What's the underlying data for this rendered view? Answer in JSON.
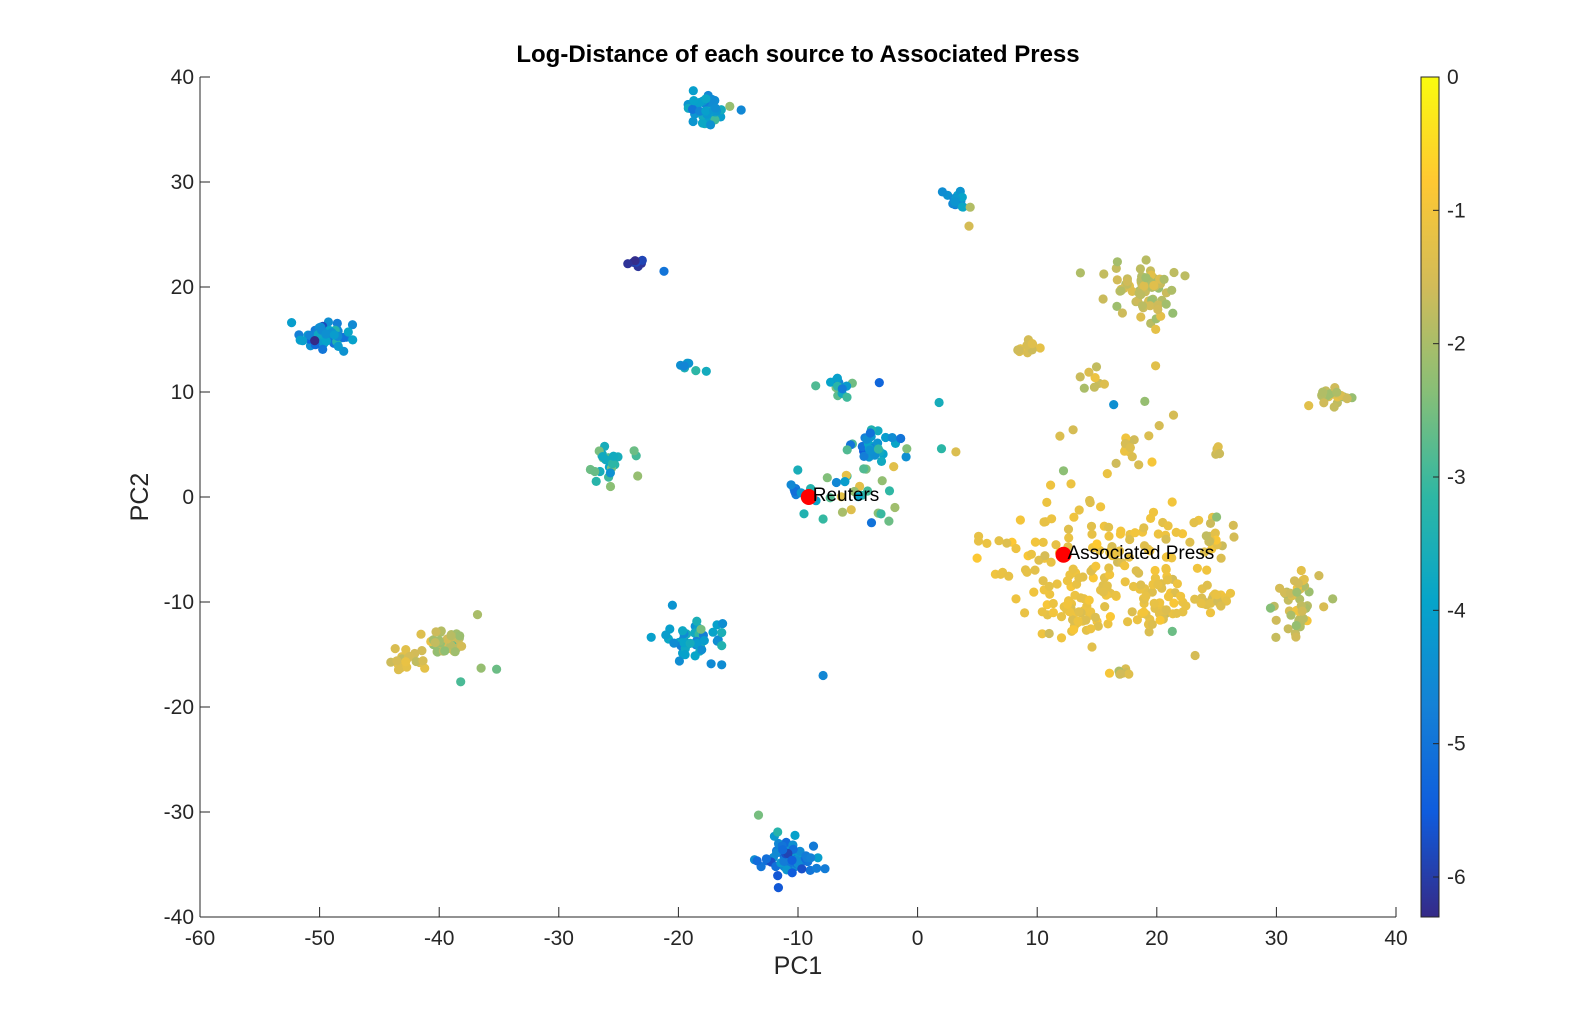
{
  "chart_data": {
    "type": "scatter",
    "title": "Log-Distance of each source to Associated Press",
    "xlabel": "PC1",
    "ylabel": "PC2",
    "xlim": [
      -60,
      40
    ],
    "ylim": [
      -40,
      40
    ],
    "xticks": [
      -60,
      -50,
      -40,
      -30,
      -20,
      -10,
      0,
      10,
      20,
      30,
      40
    ],
    "yticks": [
      -40,
      -30,
      -20,
      -10,
      0,
      10,
      20,
      30,
      40
    ],
    "grid": false,
    "colorbar": {
      "range": [
        -6.3,
        0
      ],
      "ticks": [
        0,
        -1,
        -2,
        -3,
        -4,
        -5,
        -6
      ],
      "colormap": "parula",
      "colors": [
        "#352a87",
        "#0f5cdd",
        "#1481d6",
        "#06a4ca",
        "#2eb7a4",
        "#87bf77",
        "#d1bb59",
        "#fec832",
        "#f9fb0e"
      ]
    },
    "highlight_color": "#ff0000",
    "highlighted_points": [
      {
        "label": "Reuters",
        "x": -9.1,
        "y": 0
      },
      {
        "label": "Associated Press",
        "x": 12.2,
        "y": -5.5
      }
    ],
    "clusters": [
      {
        "cx": -17.5,
        "cy": 37,
        "sx": 0.9,
        "sy": 0.7,
        "n": 45,
        "value": -4.2,
        "spread": 0.4
      },
      {
        "cx": 3,
        "cy": 28.3,
        "sx": 0.5,
        "sy": 0.3,
        "n": 14,
        "value": -4.3,
        "spread": 0.3
      },
      {
        "cx": -23.5,
        "cy": 22.4,
        "sx": 0.4,
        "sy": 0.2,
        "n": 10,
        "value": -6.0,
        "spread": 0.15
      },
      {
        "cx": -49.3,
        "cy": 15.3,
        "sx": 1.1,
        "sy": 0.7,
        "n": 55,
        "value": -4.6,
        "spread": 0.5
      },
      {
        "cx": -18.8,
        "cy": 12.4,
        "sx": 0.5,
        "sy": 0.3,
        "n": 7,
        "value": -4.0,
        "spread": 0.4
      },
      {
        "cx": -6.5,
        "cy": 10.5,
        "sx": 0.7,
        "sy": 0.6,
        "n": 14,
        "value": -3.8,
        "spread": 0.7
      },
      {
        "cx": -3.5,
        "cy": 5,
        "sx": 1.0,
        "sy": 0.7,
        "n": 28,
        "value": -4.3,
        "spread": 0.6
      },
      {
        "cx": -26,
        "cy": 3.3,
        "sx": 0.7,
        "sy": 0.8,
        "n": 24,
        "value": -3.3,
        "spread": 0.5
      },
      {
        "cx": -5.5,
        "cy": 1,
        "sx": 2.2,
        "sy": 1.6,
        "n": 25,
        "value": -3.1,
        "spread": 1.0
      },
      {
        "cx": -10,
        "cy": 0.6,
        "sx": 0.6,
        "sy": 0.4,
        "n": 8,
        "value": -4.5,
        "spread": 0.3
      },
      {
        "cx": 18.8,
        "cy": 19.6,
        "sx": 1.4,
        "sy": 1.4,
        "n": 70,
        "value": -1.8,
        "spread": 0.25
      },
      {
        "cx": 9.4,
        "cy": 14.3,
        "sx": 0.7,
        "sy": 0.3,
        "n": 12,
        "value": -1.4,
        "spread": 0.2
      },
      {
        "cx": 34.8,
        "cy": 9.6,
        "sx": 0.7,
        "sy": 0.4,
        "n": 20,
        "value": -1.7,
        "spread": 0.3
      },
      {
        "cx": 17.8,
        "cy": 5,
        "sx": 0.7,
        "sy": 0.8,
        "n": 14,
        "value": -1.3,
        "spread": 0.2
      },
      {
        "cx": 15.5,
        "cy": 11.3,
        "sx": 1.2,
        "sy": 0.6,
        "n": 8,
        "value": -1.5,
        "spread": 0.2
      },
      {
        "cx": 25,
        "cy": 4.4,
        "sx": 0.3,
        "sy": 0.2,
        "n": 5,
        "value": -1.5,
        "spread": 0.2
      },
      {
        "cx": 15,
        "cy": -6,
        "sx": 5.0,
        "sy": 3.4,
        "n": 150,
        "value": -1.15,
        "spread": 0.15
      },
      {
        "cx": 20,
        "cy": -10,
        "sx": 1.7,
        "sy": 1.6,
        "n": 45,
        "value": -1.2,
        "spread": 0.15
      },
      {
        "cx": 13.2,
        "cy": -11.4,
        "sx": 1.2,
        "sy": 1.0,
        "n": 35,
        "value": -1.15,
        "spread": 0.15
      },
      {
        "cx": 24.3,
        "cy": -4,
        "sx": 0.8,
        "sy": 0.5,
        "n": 12,
        "value": -1.4,
        "spread": 0.3
      },
      {
        "cx": 24.8,
        "cy": -9.8,
        "sx": 0.8,
        "sy": 0.5,
        "n": 20,
        "value": -1.2,
        "spread": 0.15
      },
      {
        "cx": 31.7,
        "cy": -9.6,
        "sx": 0.9,
        "sy": 1.6,
        "n": 45,
        "value": -1.6,
        "spread": 0.3
      },
      {
        "cx": 17,
        "cy": -16.7,
        "sx": 0.4,
        "sy": 0.3,
        "n": 8,
        "value": -1.4,
        "spread": 0.3
      },
      {
        "cx": -18.8,
        "cy": -13.8,
        "sx": 1.3,
        "sy": 0.9,
        "n": 50,
        "value": -3.9,
        "spread": 0.4
      },
      {
        "cx": -39.7,
        "cy": -13.9,
        "sx": 0.8,
        "sy": 0.7,
        "n": 35,
        "value": -1.8,
        "spread": 0.3
      },
      {
        "cx": -42.5,
        "cy": -15.8,
        "sx": 0.9,
        "sy": 0.7,
        "n": 20,
        "value": -1.4,
        "spread": 0.2
      },
      {
        "cx": -11,
        "cy": -34.5,
        "sx": 1.2,
        "sy": 0.9,
        "n": 60,
        "value": -5.0,
        "spread": 0.5
      }
    ],
    "scattered_points": [
      {
        "x": -21.2,
        "y": 21.5,
        "value": -5.0
      },
      {
        "x": -15.7,
        "y": 37.2,
        "value": -2.2
      },
      {
        "x": 4.3,
        "y": 25.8,
        "value": -1.5
      },
      {
        "x": 4.4,
        "y": 27.6,
        "value": -1.9
      },
      {
        "x": -5.9,
        "y": 9.5,
        "value": -3.0
      },
      {
        "x": -3.2,
        "y": 10.9,
        "value": -5.3
      },
      {
        "x": 1.8,
        "y": 9.0,
        "value": -3.6
      },
      {
        "x": 2.0,
        "y": 4.6,
        "value": -3.2
      },
      {
        "x": 3.2,
        "y": 4.3,
        "value": -1.4
      },
      {
        "x": -0.9,
        "y": 4.6,
        "value": -2.4
      },
      {
        "x": -2.0,
        "y": 2.9,
        "value": -1.3
      },
      {
        "x": -1.9,
        "y": -1.0,
        "value": -2.1
      },
      {
        "x": -2.4,
        "y": -2.3,
        "value": -2.6
      },
      {
        "x": -7.9,
        "y": -2.1,
        "value": -3.1
      },
      {
        "x": -9.5,
        "y": -1.6,
        "value": -3.4
      },
      {
        "x": -23.4,
        "y": 2.0,
        "value": -2.2
      },
      {
        "x": -23.7,
        "y": 4.4,
        "value": -2.6
      },
      {
        "x": -7.9,
        "y": -17.0,
        "value": -4.6
      },
      {
        "x": -13.3,
        "y": -30.3,
        "value": -2.5
      },
      {
        "x": -11.7,
        "y": -31.9,
        "value": -3.3
      },
      {
        "x": -36.8,
        "y": -11.2,
        "value": -2.0
      },
      {
        "x": -36.5,
        "y": -16.3,
        "value": -2.2
      },
      {
        "x": -35.2,
        "y": -16.4,
        "value": -2.6
      },
      {
        "x": -38.2,
        "y": -17.6,
        "value": -2.9
      },
      {
        "x": -20.5,
        "y": -10.3,
        "value": -4.3
      },
      {
        "x": 13.0,
        "y": 6.4,
        "value": -1.5
      },
      {
        "x": 11.9,
        "y": 5.8,
        "value": -1.4
      },
      {
        "x": 16.4,
        "y": 8.8,
        "value": -4.4
      },
      {
        "x": 19.0,
        "y": 9.1,
        "value": -2.2
      },
      {
        "x": 19.9,
        "y": 12.5,
        "value": -1.3
      },
      {
        "x": 21.4,
        "y": 7.8,
        "value": -1.5
      },
      {
        "x": 20.2,
        "y": 6.8,
        "value": -1.5
      },
      {
        "x": 16.6,
        "y": 3.2,
        "value": -1.6
      },
      {
        "x": 12.2,
        "y": 2.5,
        "value": -2.3
      },
      {
        "x": 23.2,
        "y": -15.1,
        "value": -1.5
      },
      {
        "x": 21.3,
        "y": -12.8,
        "value": -2.6
      },
      {
        "x": 26.4,
        "y": -2.7,
        "value": -1.5
      },
      {
        "x": 25.0,
        "y": -1.9,
        "value": -2.3
      },
      {
        "x": 32.7,
        "y": 8.7,
        "value": -1.3
      },
      {
        "x": 11.0,
        "y": -13.0,
        "value": -1.6
      }
    ]
  }
}
